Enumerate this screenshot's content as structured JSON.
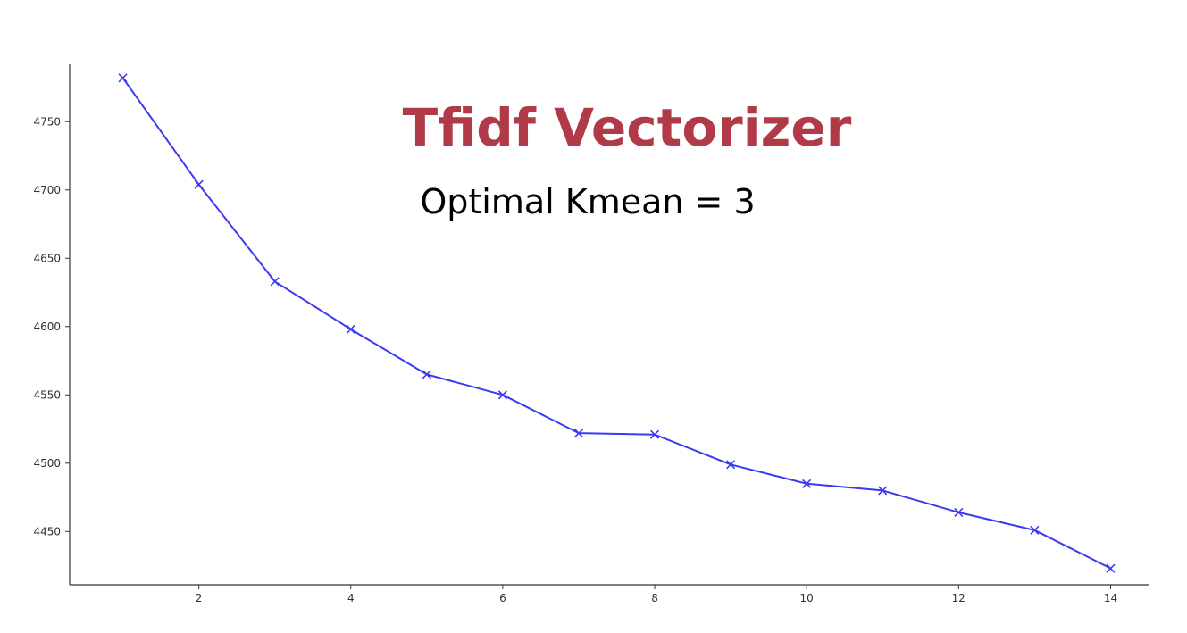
{
  "title": "Tfidf Vectorizer",
  "subtitle": "Optimal Kmean = 3",
  "chart_data": {
    "type": "line",
    "title": "Tfidf Vectorizer",
    "subtitle": "Optimal Kmean = 3",
    "xlabel": "",
    "ylabel": "",
    "xlim": [
      0.3,
      14.5
    ],
    "ylim": [
      4411,
      4792
    ],
    "xticks": [
      2,
      4,
      6,
      8,
      10,
      12,
      14
    ],
    "yticks": [
      4450,
      4500,
      4550,
      4600,
      4650,
      4700,
      4750
    ],
    "grid": false,
    "legend": "none",
    "series": [
      {
        "color": "#3a3af0",
        "marker": "x",
        "x": [
          1,
          2,
          3,
          4,
          5,
          6,
          7,
          8,
          9,
          10,
          11,
          12,
          13,
          14
        ],
        "y": [
          4782,
          4704,
          4633,
          4598,
          4565,
          4550,
          4522,
          4521,
          4499,
          4485,
          4480,
          4464,
          4451,
          4423
        ]
      }
    ]
  }
}
